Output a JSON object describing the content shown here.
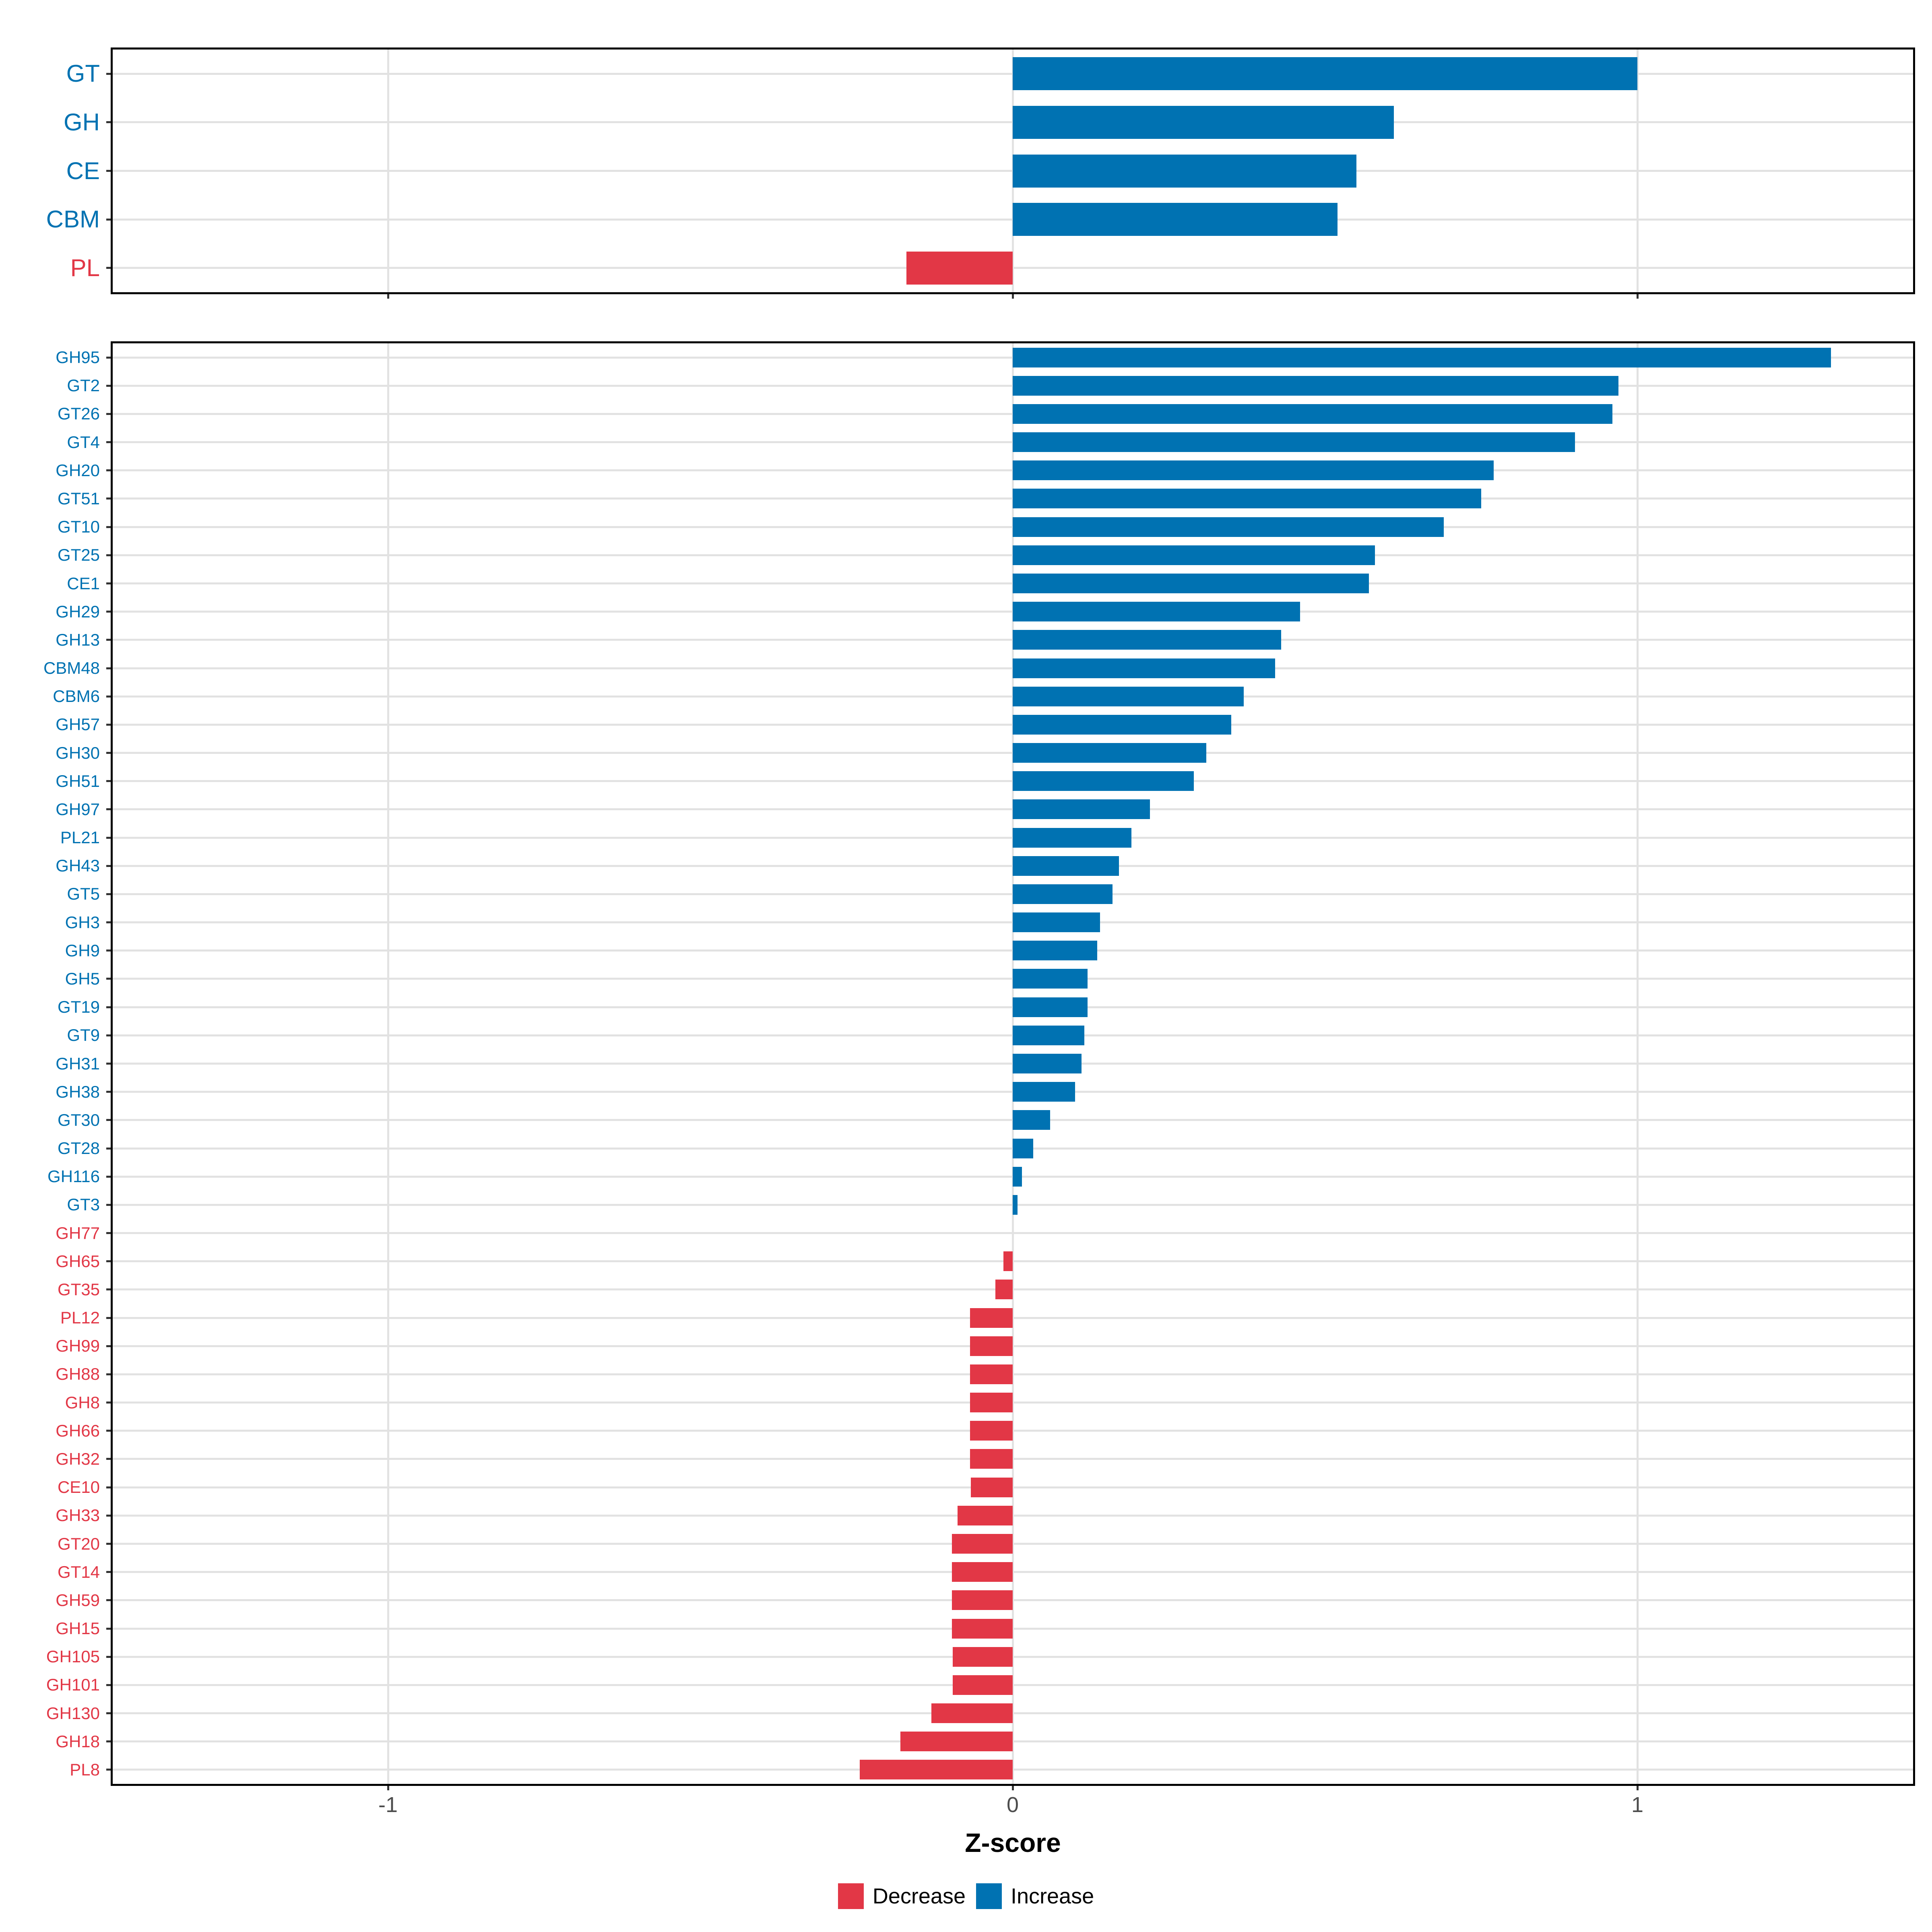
{
  "colors": {
    "increase": "#0072B2",
    "decrease": "#E23746",
    "gridline": "#E2E2E2",
    "axis_text": "#4D4D4D",
    "panel_border": "#000000"
  },
  "x_axis": {
    "label": "Z-score",
    "ticks": [
      -1,
      0,
      1
    ],
    "tick_labels": [
      "-1",
      "0",
      "1"
    ],
    "range": [
      -1.44,
      1.44
    ]
  },
  "legend": [
    {
      "label": "Decrease",
      "color": "#E23746"
    },
    {
      "label": "Increase",
      "color": "#0072B2"
    }
  ],
  "chart_data": [
    {
      "type": "bar",
      "orientation": "horizontal",
      "panel": "top",
      "title": "",
      "xlabel": "Z-score",
      "xlim": [
        -1.44,
        1.44
      ],
      "grid": true,
      "categories": [
        "GT",
        "GH",
        "CE",
        "CBM",
        "PL"
      ],
      "values": [
        1.0,
        0.61,
        0.55,
        0.52,
        -0.17
      ],
      "directions": [
        "Increase",
        "Increase",
        "Increase",
        "Increase",
        "Decrease"
      ]
    },
    {
      "type": "bar",
      "orientation": "horizontal",
      "panel": "bottom",
      "title": "",
      "xlabel": "Z-score",
      "xlim": [
        -1.44,
        1.44
      ],
      "grid": true,
      "categories": [
        "GH95",
        "GT2",
        "GT26",
        "GT4",
        "GH20",
        "GT51",
        "GT10",
        "GT25",
        "CE1",
        "GH29",
        "GH13",
        "CBM48",
        "CBM6",
        "GH57",
        "GH30",
        "GH51",
        "GH97",
        "PL21",
        "GH43",
        "GT5",
        "GH3",
        "GH9",
        "GH5",
        "GT19",
        "GT9",
        "GH31",
        "GH38",
        "GT30",
        "GT28",
        "GH116",
        "GT3",
        "GH77",
        "GH65",
        "GT35",
        "PL12",
        "GH99",
        "GH88",
        "GH8",
        "GH66",
        "GH32",
        "CE10",
        "GH33",
        "GT20",
        "GT14",
        "GH59",
        "GH15",
        "GH105",
        "GH101",
        "GH130",
        "GH18",
        "PL8"
      ],
      "values": [
        1.31,
        0.97,
        0.96,
        0.9,
        0.77,
        0.75,
        0.69,
        0.58,
        0.57,
        0.46,
        0.43,
        0.42,
        0.37,
        0.35,
        0.31,
        0.29,
        0.22,
        0.19,
        0.17,
        0.16,
        0.14,
        0.135,
        0.12,
        0.12,
        0.115,
        0.11,
        0.1,
        0.06,
        0.033,
        0.015,
        0.008,
        0.0,
        -0.015,
        -0.028,
        -0.068,
        -0.068,
        -0.068,
        -0.068,
        -0.068,
        -0.068,
        -0.067,
        -0.088,
        -0.097,
        -0.097,
        -0.097,
        -0.097,
        -0.096,
        -0.096,
        -0.13,
        -0.18,
        -0.245
      ],
      "directions": [
        "Increase",
        "Increase",
        "Increase",
        "Increase",
        "Increase",
        "Increase",
        "Increase",
        "Increase",
        "Increase",
        "Increase",
        "Increase",
        "Increase",
        "Increase",
        "Increase",
        "Increase",
        "Increase",
        "Increase",
        "Increase",
        "Increase",
        "Increase",
        "Increase",
        "Increase",
        "Increase",
        "Increase",
        "Increase",
        "Increase",
        "Increase",
        "Increase",
        "Increase",
        "Increase",
        "Increase",
        "Decrease",
        "Decrease",
        "Decrease",
        "Decrease",
        "Decrease",
        "Decrease",
        "Decrease",
        "Decrease",
        "Decrease",
        "Decrease",
        "Decrease",
        "Decrease",
        "Decrease",
        "Decrease",
        "Decrease",
        "Decrease",
        "Decrease",
        "Decrease",
        "Decrease",
        "Decrease"
      ]
    }
  ]
}
